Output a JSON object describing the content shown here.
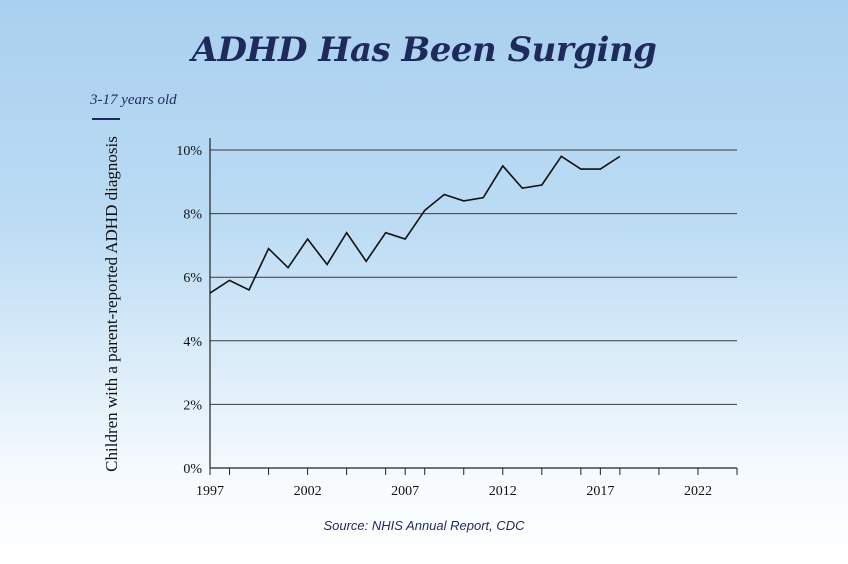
{
  "chart_data": {
    "type": "line",
    "title": "ADHD Has Been Surging",
    "subtitle": "3-17 years old",
    "ylabel": "Children with a parent-reported ADHD diagnosis",
    "xlabel": "",
    "source": "Source: NHIS Annual Report, CDC",
    "xlim": [
      1997,
      2024
    ],
    "ylim": [
      0,
      10
    ],
    "x_ticks": [
      1997,
      2002,
      2007,
      2012,
      2017,
      2022
    ],
    "y_ticks": [
      0,
      2,
      4,
      6,
      8,
      10
    ],
    "y_tick_labels": [
      "0%",
      "2%",
      "4%",
      "6%",
      "8%",
      "10%"
    ],
    "grid": "horizontal",
    "line_color": "#111111",
    "series": [
      {
        "x": [
          1997,
          1998,
          1999,
          2000,
          2001,
          2002,
          2003,
          2004,
          2005,
          2006,
          2007,
          2008,
          2009,
          2010,
          2011,
          2012,
          2013,
          2014,
          2015,
          2016,
          2017,
          2018
        ],
        "values": [
          5.5,
          5.9,
          5.6,
          6.9,
          6.3,
          7.2,
          6.4,
          7.4,
          6.5,
          7.4,
          7.2,
          8.1,
          8.6,
          8.4,
          8.5,
          9.5,
          8.8,
          8.9,
          9.8,
          9.4,
          9.4,
          9.8
        ]
      }
    ]
  }
}
